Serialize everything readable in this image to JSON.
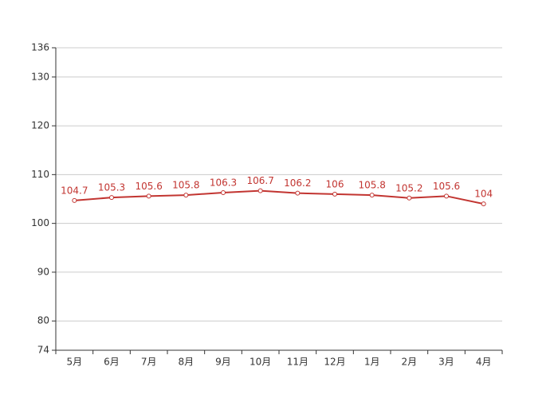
{
  "chart_data": {
    "type": "line",
    "categories": [
      "5月",
      "6月",
      "7月",
      "8月",
      "9月",
      "10月",
      "11月",
      "12月",
      "1月",
      "2月",
      "3月",
      "4月"
    ],
    "values": [
      104.7,
      105.3,
      105.6,
      105.8,
      106.3,
      106.7,
      106.2,
      106,
      105.8,
      105.2,
      105.6,
      104
    ],
    "color": "#c23531",
    "ylim": [
      74,
      136
    ],
    "yticks": [
      74,
      80,
      90,
      100,
      110,
      120,
      130,
      136
    ],
    "grid": true
  }
}
